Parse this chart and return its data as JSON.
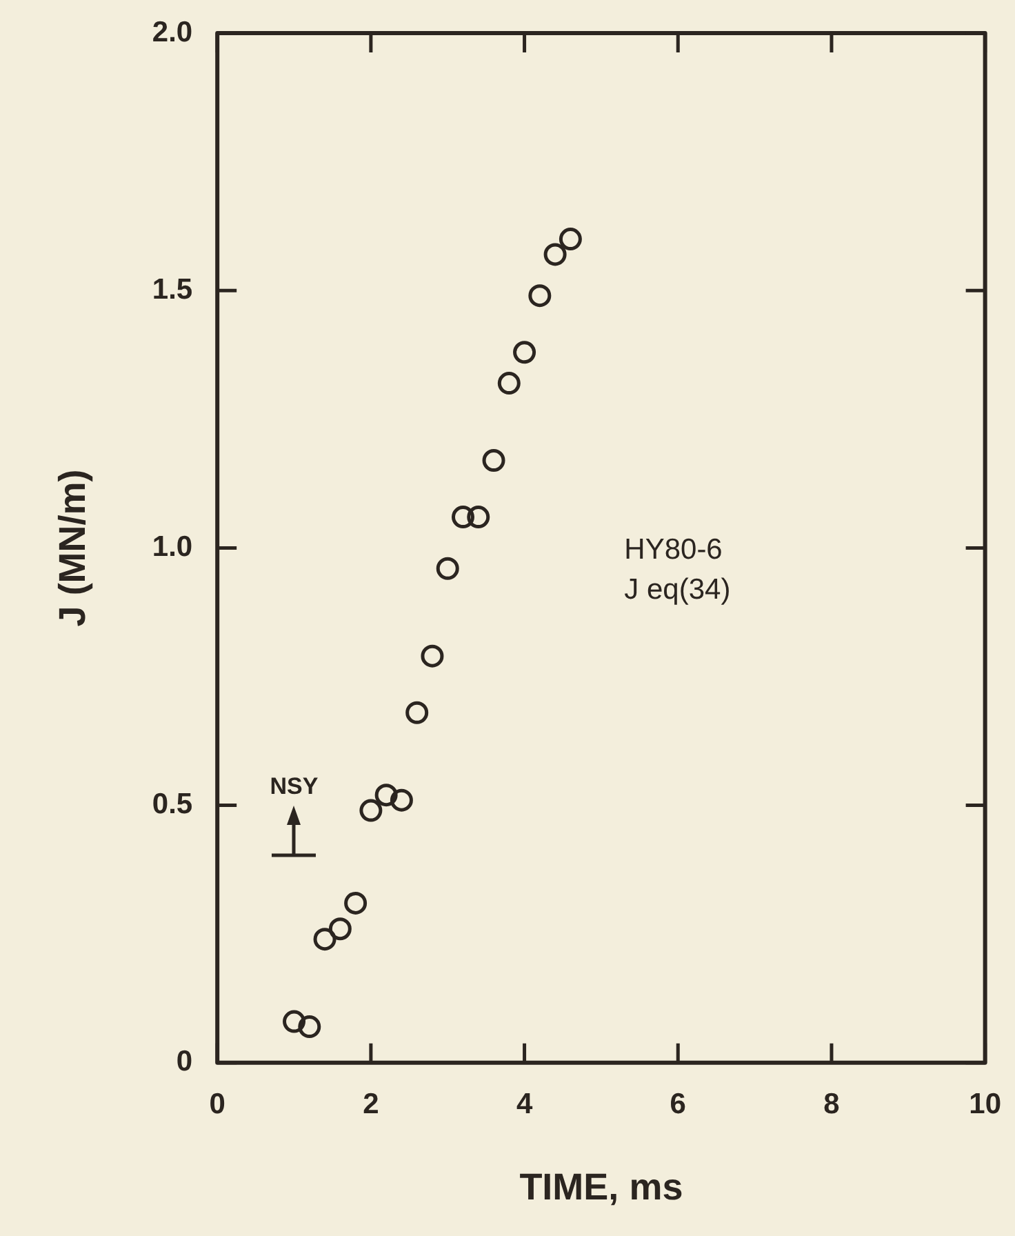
{
  "chart_data": {
    "type": "scatter",
    "xlabel": "TIME, ms",
    "ylabel": "J (MN/m)",
    "x": [
      1.0,
      1.2,
      1.4,
      1.6,
      1.8,
      2.0,
      2.2,
      2.4,
      2.6,
      2.8,
      3.0,
      3.2,
      3.4,
      3.6,
      3.8,
      4.0,
      4.2,
      4.4,
      4.6
    ],
    "values": [
      0.08,
      0.07,
      0.24,
      0.26,
      0.31,
      0.49,
      0.52,
      0.51,
      0.68,
      0.79,
      0.96,
      1.06,
      1.06,
      1.17,
      1.32,
      1.38,
      1.49,
      1.57,
      1.6
    ],
    "color": "#2b2520",
    "marker": "circle",
    "xlim": [
      0,
      10
    ],
    "xticks": [
      0,
      2,
      4,
      6,
      8,
      10
    ],
    "ylim": [
      0,
      2
    ],
    "yticks": [
      0,
      {
        "value": 0.5,
        "label": "0.5"
      },
      {
        "value": 1,
        "label": "1.0"
      },
      {
        "value": 1.5,
        "label": "1.5"
      },
      {
        "value": 2,
        "label": "2.0"
      }
    ],
    "grid": false,
    "legend": false,
    "annotations": [
      "NSY",
      "HY80-6",
      "J eq(34)"
    ]
  }
}
